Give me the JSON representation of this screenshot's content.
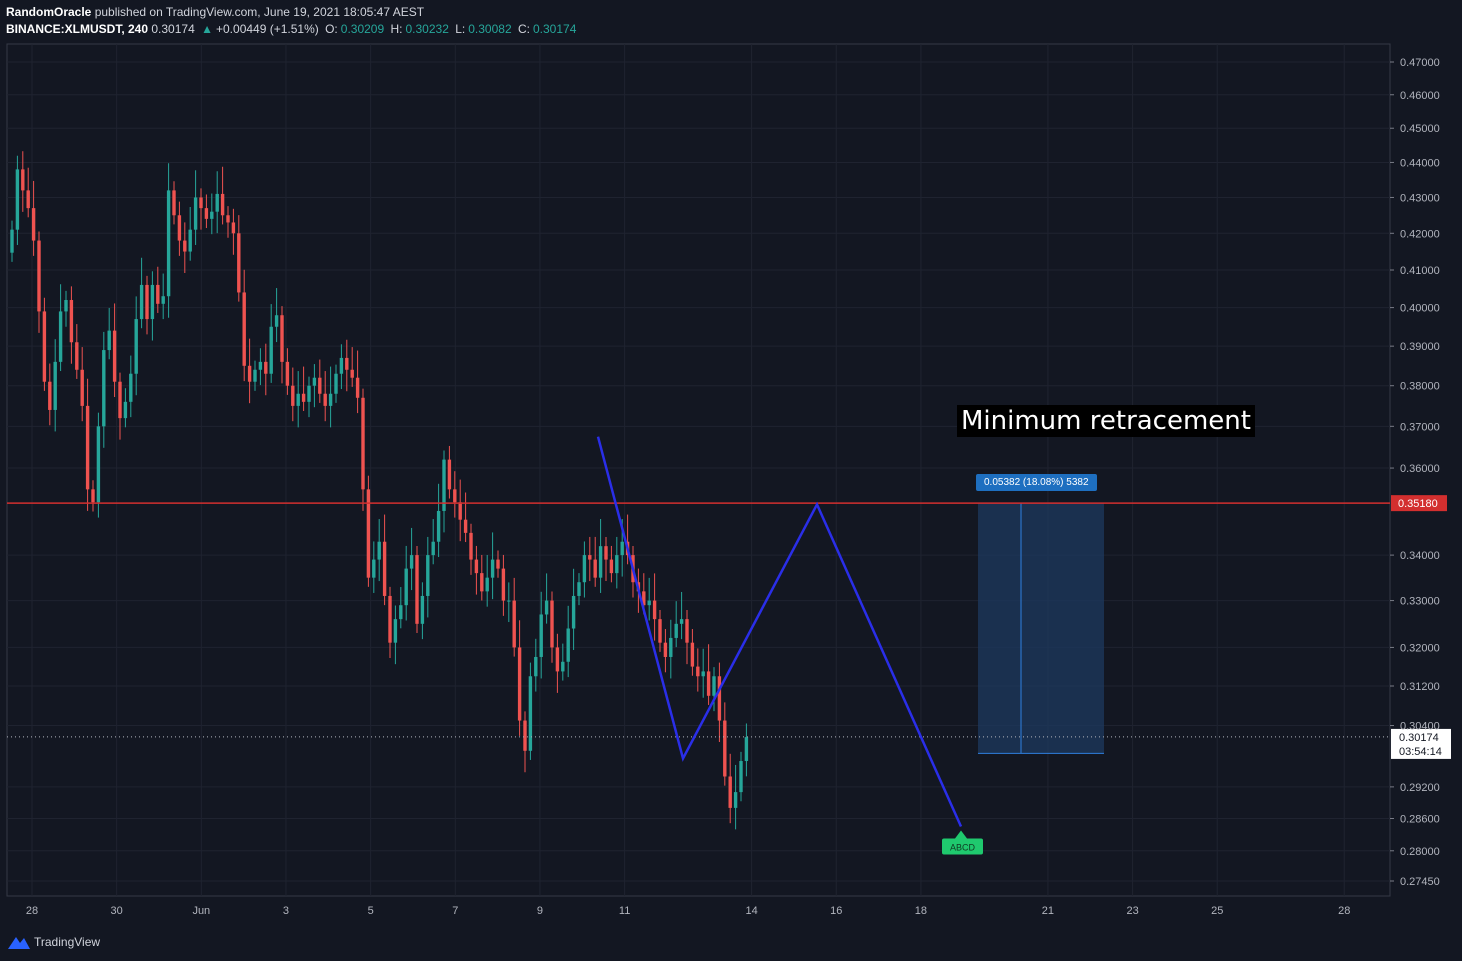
{
  "header": {
    "author": "RandomOracle",
    "published_text": "published on TradingView.com, June 19, 2021 18:05:47 AEST",
    "symbol": "BINANCE:XLMUSDT, 240",
    "last": "0.30174",
    "change": "+0.00449 (+1.51%)",
    "o_label": "O:",
    "o_value": "0.30209",
    "h_label": "H:",
    "h_value": "0.30232",
    "l_label": "L:",
    "l_value": "0.30082",
    "c_label": "C:",
    "c_value": "0.30174"
  },
  "annotation": {
    "text": "Minimum retracement"
  },
  "measure": {
    "label": "0.05382 (18.08%) 5382"
  },
  "pattern": {
    "label": "ABCD"
  },
  "footer": {
    "brand": "TradingView"
  },
  "colors": {
    "background": "#131722",
    "up": "#26a69a",
    "down": "#ef5350",
    "pattern_line": "#2a2ee8",
    "resistance": "#d32f2f",
    "measure_box": "#1e3a5f"
  },
  "chart_data": {
    "type": "candlestick",
    "symbol": "XLMUSDT",
    "y_ticks": [
      "0.47000",
      "0.46000",
      "0.45000",
      "0.44000",
      "0.43000",
      "0.42000",
      "0.41000",
      "0.40000",
      "0.39000",
      "0.38000",
      "0.37000",
      "0.36000",
      "0.34000",
      "0.33000",
      "0.32000",
      "0.31200",
      "0.30400",
      "0.29200",
      "0.28600",
      "0.28000",
      "0.27450"
    ],
    "x_ticks": [
      "28",
      "30",
      "Jun",
      "3",
      "5",
      "7",
      "9",
      "11",
      "14",
      "16",
      "18",
      "21",
      "23",
      "25",
      "28"
    ],
    "resistance_price": "0.35180",
    "last_price": "0.30174",
    "countdown": "03:54:14",
    "abcd_points": [
      {
        "date": "Jun 10",
        "price": 0.3675
      },
      {
        "date": "Jun 12",
        "price": 0.2975
      },
      {
        "date": "Jun 15",
        "price": 0.3515
      },
      {
        "date": "Jun 18",
        "price": 0.2845
      }
    ],
    "closes": [
      0.421,
      0.438,
      0.432,
      0.427,
      0.418,
      0.399,
      0.381,
      0.374,
      0.386,
      0.399,
      0.402,
      0.391,
      0.384,
      0.375,
      0.355,
      0.352,
      0.37,
      0.389,
      0.394,
      0.381,
      0.372,
      0.376,
      0.383,
      0.397,
      0.406,
      0.397,
      0.406,
      0.401,
      0.403,
      0.432,
      0.425,
      0.418,
      0.415,
      0.421,
      0.43,
      0.427,
      0.424,
      0.426,
      0.431,
      0.425,
      0.423,
      0.42,
      0.404,
      0.385,
      0.381,
      0.384,
      0.386,
      0.383,
      0.395,
      0.398,
      0.386,
      0.38,
      0.375,
      0.378,
      0.376,
      0.38,
      0.382,
      0.378,
      0.375,
      0.378,
      0.383,
      0.387,
      0.384,
      0.382,
      0.377,
      0.355,
      0.335,
      0.339,
      0.343,
      0.331,
      0.321,
      0.326,
      0.329,
      0.337,
      0.34,
      0.325,
      0.331,
      0.34,
      0.343,
      0.35,
      0.362,
      0.355,
      0.352,
      0.348,
      0.345,
      0.339,
      0.336,
      0.332,
      0.335,
      0.339,
      0.337,
      0.33,
      0.33,
      0.32,
      0.305,
      0.299,
      0.314,
      0.318,
      0.327,
      0.33,
      0.32,
      0.315,
      0.317,
      0.324,
      0.331,
      0.334,
      0.34,
      0.339,
      0.335,
      0.342,
      0.339,
      0.336,
      0.34,
      0.343,
      0.34,
      0.334,
      0.332,
      0.329,
      0.33,
      0.326,
      0.321,
      0.318,
      0.322,
      0.325,
      0.326,
      0.321,
      0.316,
      0.314,
      0.315,
      0.31,
      0.314,
      0.305,
      0.294,
      0.288,
      0.291,
      0.297,
      0.3017
    ]
  }
}
